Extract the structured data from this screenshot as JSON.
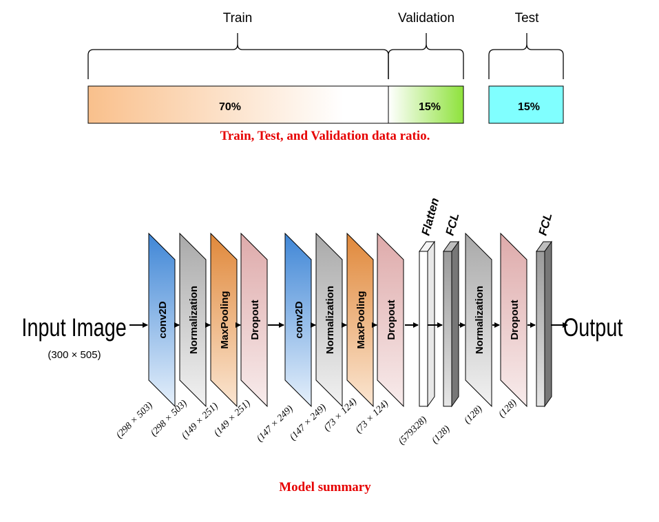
{
  "split": {
    "labels": {
      "train": "Train",
      "validation": "Validation",
      "test": "Test"
    },
    "segments": [
      {
        "name": "train",
        "percent": "70%",
        "color_from": "#f9c08c",
        "color_to": "#ffffff"
      },
      {
        "name": "validation",
        "percent": "15%",
        "color_from": "#ffffff",
        "color_to": "#8ee23c"
      },
      {
        "name": "test",
        "percent": "15%",
        "color": "#80ffff"
      }
    ],
    "caption": "Train, Test, and Validation data ratio."
  },
  "model": {
    "input_label": "Input Image",
    "input_size": "(300 × 505)",
    "output_label": "Output",
    "caption": "Model summary",
    "layers": [
      {
        "label": "conv2D",
        "dim": "(298 × 503)",
        "color": "#4f8fd8"
      },
      {
        "label": "Normalization",
        "dim": "(298 × 503)",
        "color": "#b3b3b3"
      },
      {
        "label": "MaxPooling",
        "dim": "(149 × 251)",
        "color": "#e0883a"
      },
      {
        "label": "Dropout",
        "dim": "(149 × 251)",
        "color": "#e3b2b2"
      },
      {
        "label": "conv2D",
        "dim": "(147 × 249)",
        "color": "#4f8fd8"
      },
      {
        "label": "Normalization",
        "dim": "(147 × 249)",
        "color": "#b3b3b3"
      },
      {
        "label": "MaxPooling",
        "dim": "(73 × 124)",
        "color": "#e0883a"
      },
      {
        "label": "Dropout",
        "dim": "(73 × 124)",
        "color": "#e3b2b2"
      },
      {
        "label": "Flatten",
        "dim": "(579328)",
        "color": "#ffffff"
      },
      {
        "label": "FCL",
        "dim": "(128)",
        "color": "#999999"
      },
      {
        "label": "Normalization",
        "dim": "(128)",
        "color": "#b3b3b3"
      },
      {
        "label": "Dropout",
        "dim": "(128)",
        "color": "#e3b2b2"
      },
      {
        "label": "FCL",
        "dim": "",
        "color": "#999999"
      }
    ]
  }
}
